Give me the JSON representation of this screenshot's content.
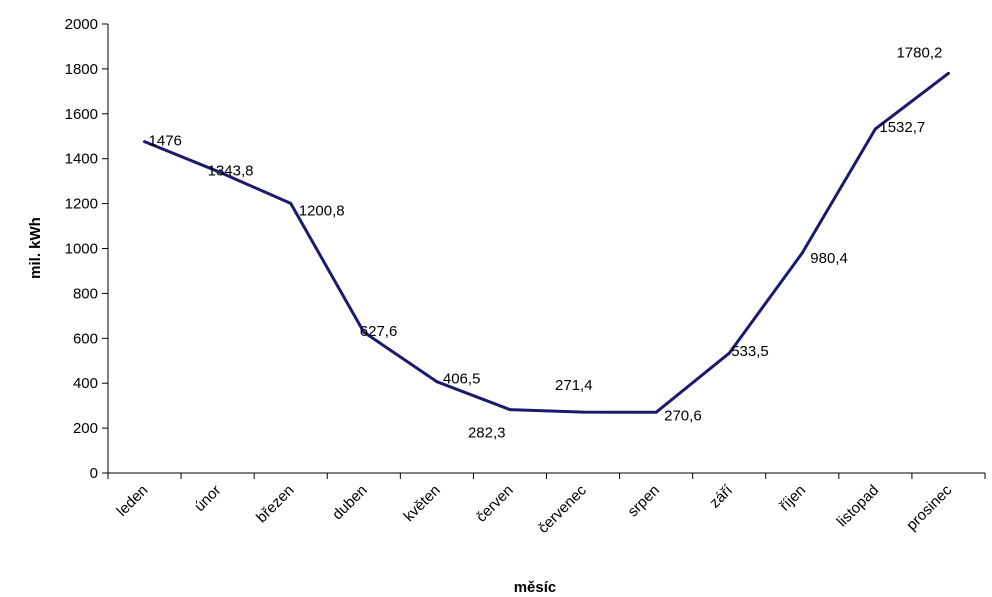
{
  "chart_data": {
    "type": "line",
    "title": "",
    "xlabel": "měsíc",
    "ylabel": "mil. kWh",
    "ylim": [
      0,
      2000
    ],
    "yticks": [
      "0",
      "200",
      "400",
      "600",
      "800",
      "1000",
      "1200",
      "1400",
      "1600",
      "1800",
      "2000"
    ],
    "grid": false,
    "legend": "none",
    "line_color": "#1a1a6e",
    "categories": [
      "leden",
      "únor",
      "březen",
      "duben",
      "květen",
      "červen",
      "červenec",
      "srpen",
      "září",
      "říjen",
      "listopad",
      "prosinec"
    ],
    "values": [
      1476,
      1343.8,
      1200.8,
      627.6,
      406.5,
      282.3,
      271.4,
      270.6,
      533.5,
      980.4,
      1532.7,
      1780.2
    ],
    "data_labels": [
      "1476",
      "1343,8",
      "1200,8",
      "627,6",
      "406,5",
      "282,3",
      "271,4",
      "270,6",
      "533,5",
      "980,4",
      "1532,7",
      "1780,2"
    ]
  }
}
